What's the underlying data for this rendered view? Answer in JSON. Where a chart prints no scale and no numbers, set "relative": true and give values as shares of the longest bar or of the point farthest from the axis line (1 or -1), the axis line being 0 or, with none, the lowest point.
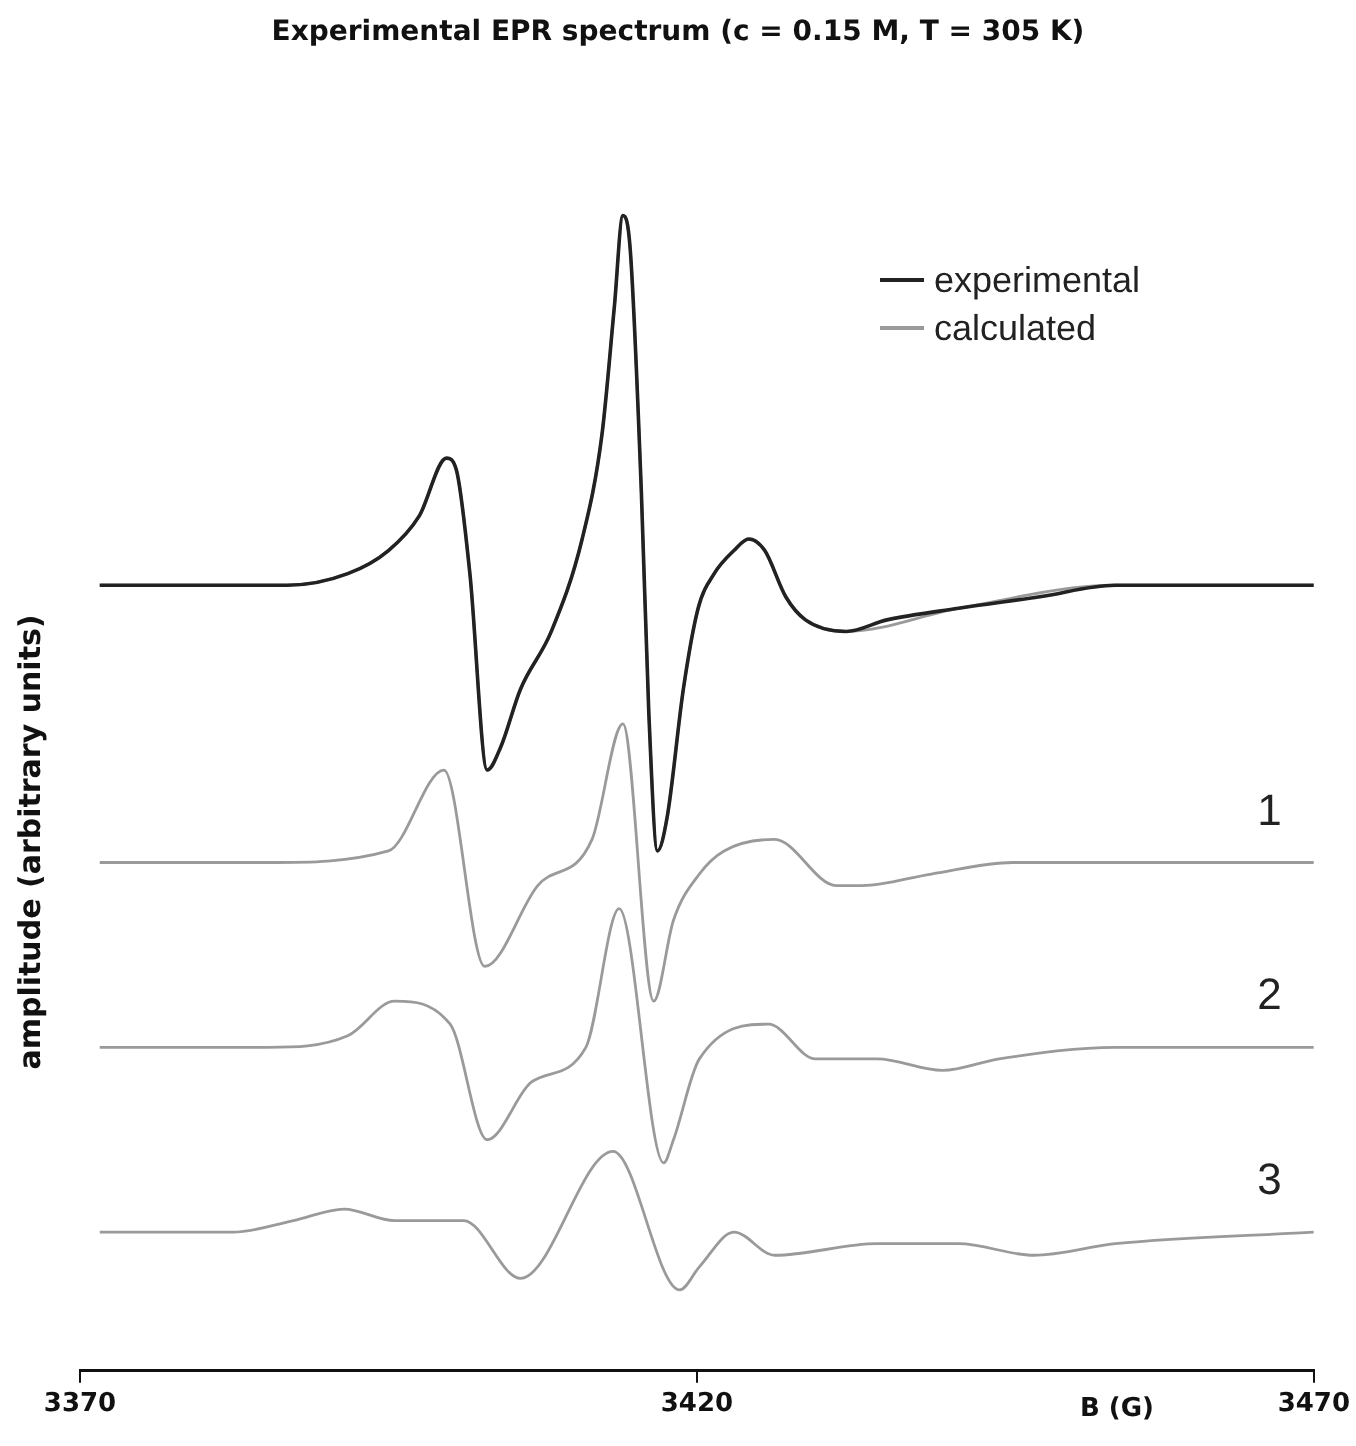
{
  "chart_data": {
    "type": "line",
    "title": "Experimental EPR spectrum (c = 0.15 M, T = 305 K)",
    "xlabel": "B (G)",
    "ylabel": "amplitude (arbitrary units)",
    "relative": true,
    "xlim": [
      3370,
      3470
    ],
    "xticks": [
      3370,
      3420,
      3470
    ],
    "grid": false,
    "legend": "top right",
    "marker": "none",
    "line_style": "solid",
    "series": [
      {
        "name": "experimental",
        "color": "#222222",
        "x": [
          3371.6,
          3378.6,
          3386.8,
          3391.7,
          3395.0,
          3397.5,
          3399.7,
          3400.5,
          3401.6,
          3403.0,
          3404.1,
          3405.7,
          3408.2,
          3410.7,
          3412.3,
          3413.3,
          3414.0,
          3414.6,
          3415.5,
          3416.1,
          3416.8,
          3417.6,
          3418.9,
          3420.1,
          3421.4,
          3423.0,
          3424.2,
          3425.5,
          3427.2,
          3428.8,
          3432.1,
          3435.4,
          3441.2,
          3447.8,
          3453.9,
          3460.9,
          3470.0
        ],
        "values": [
          0.68,
          0.68,
          0.68,
          0.69,
          0.71,
          0.74,
          0.79,
          0.78,
          0.69,
          0.52,
          0.54,
          0.59,
          0.64,
          0.72,
          0.81,
          0.92,
          1.0,
          0.97,
          0.76,
          0.57,
          0.45,
          0.48,
          0.59,
          0.66,
          0.69,
          0.71,
          0.72,
          0.71,
          0.67,
          0.65,
          0.64,
          0.65,
          0.66,
          0.67,
          0.68,
          0.68,
          0.68
        ]
      },
      {
        "name": "calculated",
        "color": "#9a9a9a",
        "x": [
          3371.6,
          3386.8,
          3391.7,
          3395.0,
          3397.5,
          3399.7,
          3400.5,
          3401.6,
          3403.0,
          3404.1,
          3405.7,
          3408.2,
          3410.7,
          3412.3,
          3413.3,
          3414.0,
          3414.6,
          3415.5,
          3416.1,
          3416.8,
          3417.6,
          3418.9,
          3420.1,
          3421.4,
          3423.0,
          3424.2,
          3425.5,
          3427.2,
          3428.8,
          3432.1,
          3441.2,
          3453.9,
          3470.0
        ],
        "values": [
          0.68,
          0.68,
          0.69,
          0.71,
          0.74,
          0.79,
          0.78,
          0.69,
          0.52,
          0.54,
          0.59,
          0.64,
          0.72,
          0.81,
          0.92,
          1.0,
          0.97,
          0.76,
          0.57,
          0.45,
          0.48,
          0.59,
          0.66,
          0.69,
          0.71,
          0.72,
          0.71,
          0.67,
          0.65,
          0.64,
          0.66,
          0.68,
          0.68
        ]
      },
      {
        "name": "1",
        "color": "#9a9a9a",
        "x": [
          3371.6,
          3385.2,
          3395.0,
          3399.5,
          3402.8,
          3407.1,
          3411.5,
          3414.0,
          3416.5,
          3418.1,
          3420.2,
          3422.2,
          3426.3,
          3431.3,
          3433.4,
          3439.0,
          3445.6,
          3470.0
        ],
        "values": [
          0.44,
          0.44,
          0.45,
          0.52,
          0.35,
          0.42,
          0.46,
          0.56,
          0.32,
          0.39,
          0.43,
          0.45,
          0.46,
          0.42,
          0.42,
          0.43,
          0.44,
          0.44
        ]
      },
      {
        "name": "2",
        "color": "#9a9a9a",
        "x": [
          3371.6,
          3385.2,
          3391.7,
          3395.5,
          3400.0,
          3403.0,
          3406.6,
          3411.0,
          3413.7,
          3417.3,
          3418.1,
          3420.2,
          3425.8,
          3429.6,
          3434.6,
          3439.9,
          3444.5,
          3453.9,
          3470.0
        ],
        "values": [
          0.28,
          0.28,
          0.29,
          0.32,
          0.3,
          0.2,
          0.25,
          0.28,
          0.4,
          0.18,
          0.2,
          0.27,
          0.3,
          0.27,
          0.27,
          0.26,
          0.27,
          0.28,
          0.28
        ]
      },
      {
        "name": "3",
        "color": "#9a9a9a",
        "x": [
          3371.6,
          3382.4,
          3387.3,
          3391.4,
          3395.5,
          3401.1,
          3405.7,
          3413.2,
          3418.6,
          3420.2,
          3423.0,
          3426.3,
          3434.6,
          3441.2,
          3447.3,
          3453.9,
          3470.0
        ],
        "values": [
          0.12,
          0.12,
          0.13,
          0.14,
          0.13,
          0.13,
          0.08,
          0.19,
          0.07,
          0.09,
          0.12,
          0.1,
          0.11,
          0.11,
          0.1,
          0.11,
          0.12
        ]
      }
    ]
  }
}
